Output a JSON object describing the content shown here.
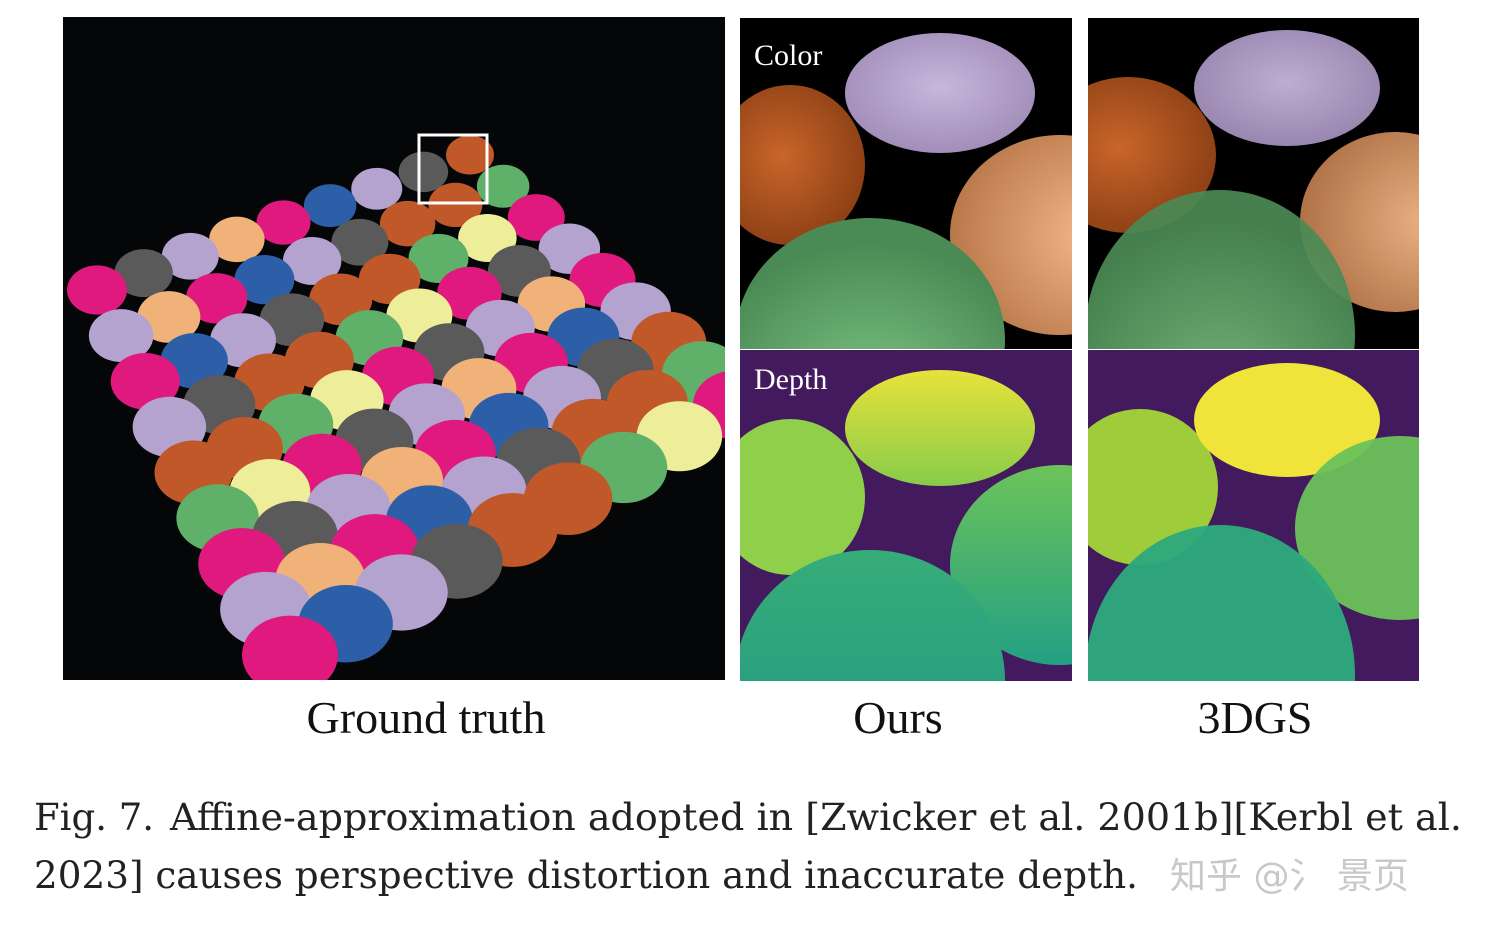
{
  "labels": {
    "color": "Color",
    "depth": "Depth",
    "ground_truth": "Ground truth",
    "ours": "Ours",
    "baseline": "3DGS"
  },
  "caption": {
    "label": "Fig. 7.",
    "lines": [
      "Affine-approximation adopted in [Zwicker et al. 2001b][Kerbl et al.",
      "2023] causes perspective distortion and inaccurate depth."
    ]
  },
  "watermark": "知乎 @氵 景页"
}
